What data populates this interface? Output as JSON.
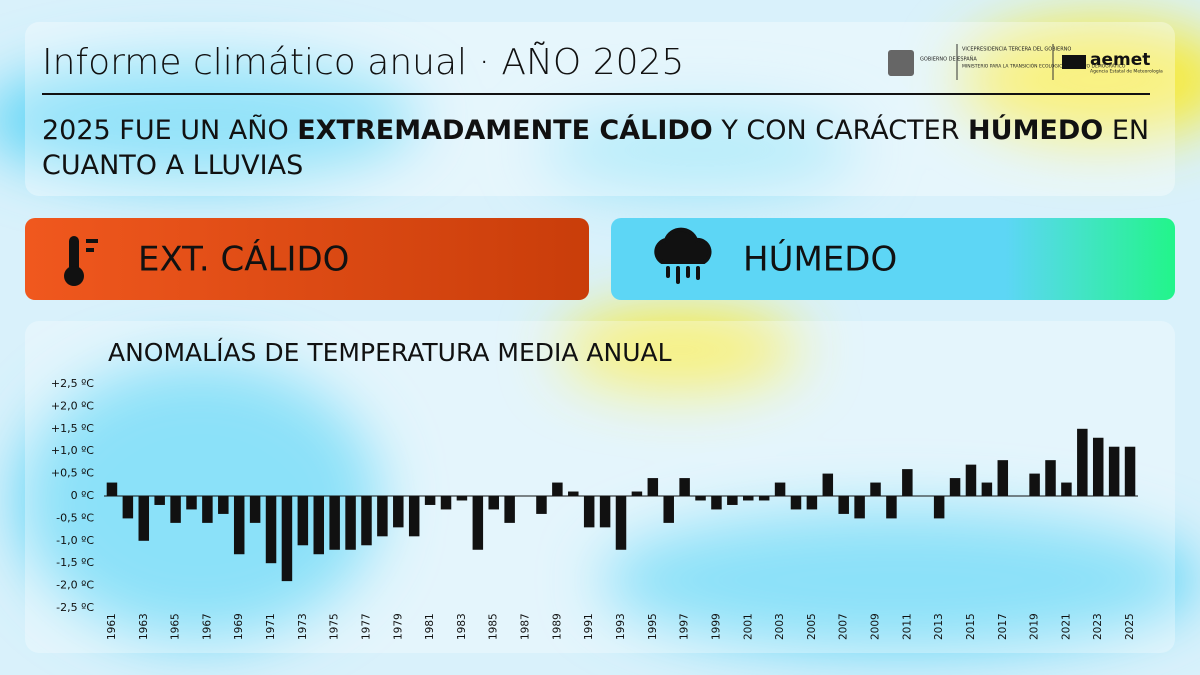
{
  "header": {
    "title": "Informe climático anual · AÑO 2025",
    "logos": {
      "gobierno": "GOBIERNO DE ESPAÑA",
      "vicepresidencia": "VICEPRESIDENCIA TERCERA DEL GOBIERNO",
      "ministerio": "MINISTERIO PARA LA TRANSICIÓN ECOLÓGICA Y EL RETO DEMOGRÁFICO",
      "aemet": "aemet",
      "aemet_sub": "Agencia Estatal de Meteorología"
    },
    "headline_lines": [
      [
        {
          "text": "2025 FUE UN AÑO ",
          "bold": false
        },
        {
          "text": "EXTREMADAMENTE CÁLIDO",
          "bold": true
        },
        {
          "text": " Y CON CARÁCTER ",
          "bold": false
        },
        {
          "text": "HÚMEDO",
          "bold": true
        },
        {
          "text": " EN",
          "bold": false
        }
      ],
      [
        {
          "text": "CUANTO A LLUVIAS",
          "bold": false
        }
      ]
    ]
  },
  "cards": [
    {
      "label": "EXT. CÁLIDO",
      "color": "#f0581e"
    },
    {
      "label": "HÚMEDO",
      "color": "#5dd6f5"
    }
  ],
  "chart_data": {
    "type": "bar",
    "title": "ANOMALÍAS DE TEMPERATURA MEDIA ANUAL",
    "color": "#111111",
    "categories": [
      "1961",
      null,
      "1963",
      null,
      "1965",
      null,
      "1967",
      null,
      "1969",
      null,
      "1971",
      null,
      "1973",
      null,
      "1975",
      null,
      "1977",
      null,
      "1979",
      null,
      "1981",
      null,
      "1983",
      null,
      "1985",
      null,
      "1987",
      null,
      "1989",
      null,
      "1991",
      null,
      "1993",
      null,
      "1995",
      null,
      "1997",
      null,
      "1999",
      null,
      "2001",
      null,
      "2003",
      null,
      "2005",
      null,
      "2007",
      null,
      "2009",
      null,
      "2011",
      null,
      "2013",
      null,
      "2015",
      null,
      "2017",
      null,
      "2019",
      null,
      "2021",
      null,
      "2023",
      null,
      "2025"
    ],
    "values": [
      0.3,
      -0.5,
      -1.0,
      -0.2,
      -0.6,
      -0.3,
      -0.6,
      -0.4,
      -1.3,
      -0.6,
      -1.5,
      -1.9,
      -1.1,
      -1.3,
      -1.2,
      -1.2,
      -1.1,
      -0.9,
      -0.7,
      -0.9,
      -0.2,
      -0.3,
      -0.1,
      -1.2,
      -0.3,
      -0.6,
      0,
      -0.4,
      0.3,
      0.1,
      -0.7,
      -0.7,
      -1.2,
      0.1,
      0.4,
      -0.6,
      0.4,
      -0.1,
      -0.3,
      -0.2,
      -0.1,
      -0.1,
      0.3,
      -0.3,
      -0.3,
      0.5,
      -0.4,
      -0.5,
      0.3,
      -0.5,
      0.6,
      0,
      -0.5,
      0.4,
      0.7,
      0.3,
      0.8,
      0,
      0.5,
      0.8,
      0.3,
      1.5,
      1.3,
      1.1,
      1.1
    ],
    "ylim": [
      -2.5,
      2.5
    ],
    "yticks": [
      {
        "value": 2.5,
        "label": "+2,5 ºC"
      },
      {
        "value": 2,
        "label": "+2,0 ºC"
      },
      {
        "value": 1.5,
        "label": "+1,5 ºC"
      },
      {
        "value": 1,
        "label": "+1,0 ºC"
      },
      {
        "value": 0.5,
        "label": "+0,5 ºC"
      },
      {
        "value": 0,
        "label": "0 ºC"
      },
      {
        "value": -0.5,
        "label": "-0,5 ºC"
      },
      {
        "value": -1,
        "label": "-1,0 ºC"
      },
      {
        "value": -1.5,
        "label": "-1,5 ºC"
      },
      {
        "value": -2,
        "label": "-2,0 ºC"
      },
      {
        "value": -2.5,
        "label": "-2,5 ºC"
      }
    ],
    "grid": false
  }
}
